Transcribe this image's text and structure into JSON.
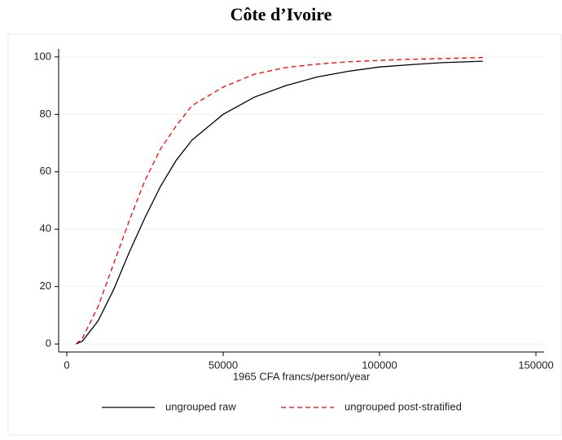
{
  "chart_data": {
    "type": "line",
    "title": "Côte d’Ivoire",
    "x_label": "1965 CFA francs/person/year",
    "x": [
      3000,
      5000,
      10000,
      15000,
      20000,
      25000,
      30000,
      35000,
      40000,
      50000,
      60000,
      70000,
      80000,
      90000,
      100000,
      110000,
      120000,
      133000
    ],
    "series": [
      {
        "name": "ungrouped raw",
        "color": "#000000",
        "style": "solid",
        "values": [
          0,
          1,
          8,
          19,
          32,
          44,
          55,
          64,
          71,
          80,
          86,
          90,
          93,
          95,
          96.5,
          97.3,
          98,
          98.5
        ]
      },
      {
        "name": "ungrouped post-stratified",
        "color": "#ff0000",
        "style": "dashed",
        "values": [
          0,
          2,
          13,
          28,
          43,
          57,
          68,
          76,
          83,
          89.5,
          94,
          96.3,
          97.5,
          98.3,
          98.8,
          99.2,
          99.4,
          99.8
        ]
      }
    ],
    "xlim": [
      -2600,
      152600
    ],
    "xticks": [
      0,
      50000,
      100000,
      150000
    ],
    "ylim": [
      -2.8,
      102.8
    ],
    "yticks": [
      0,
      20,
      40,
      60,
      80,
      100
    ],
    "grid": true,
    "legend": "bottom"
  }
}
